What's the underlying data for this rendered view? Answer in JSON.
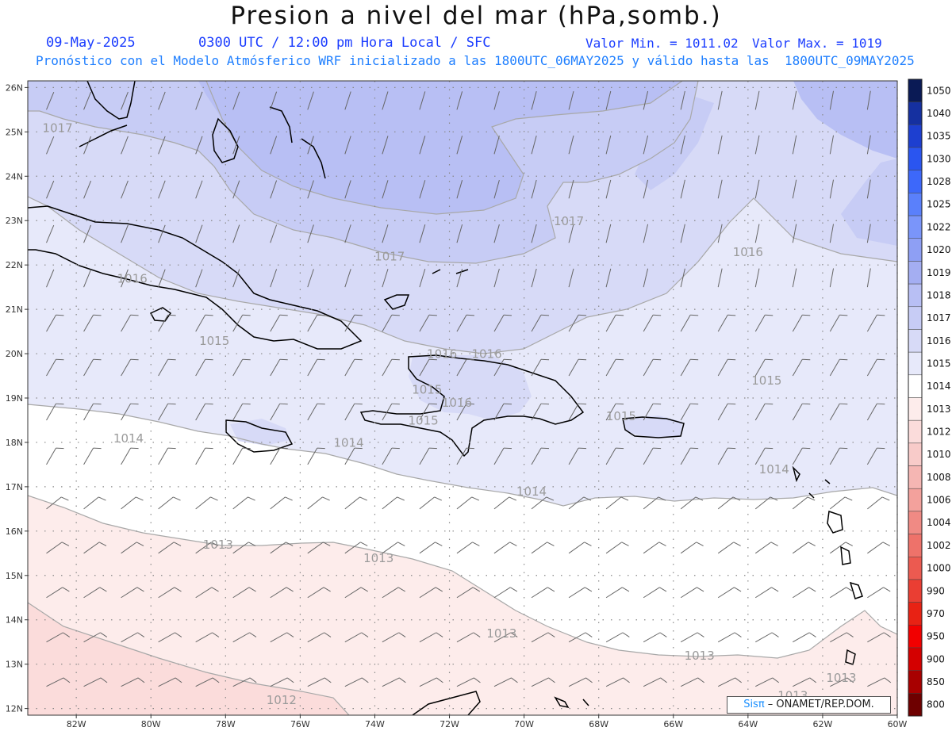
{
  "header": {
    "title": "Presion a nivel del mar (hPa,somb.)",
    "date": "09-May-2025",
    "time_info": "0300 UTC / 12:00 pm Hora Local / SFC",
    "valor_min": "Valor Min. = 1011.02",
    "valor_max": "Valor Max. = 1019",
    "model_info": "Pronóstico con el Modelo Atmósferico WRF inicializado a las 1800UTC_06MAY2025 y válido hasta las  1800UTC_09MAY2025"
  },
  "axes": {
    "lat_labels": [
      "26N",
      "25N",
      "24N",
      "23N",
      "22N",
      "21N",
      "20N",
      "19N",
      "18N",
      "17N",
      "16N",
      "15N",
      "14N",
      "13N",
      "12N"
    ],
    "lon_labels": [
      "82W",
      "80W",
      "78W",
      "76W",
      "74W",
      "72W",
      "70W",
      "68W",
      "66W",
      "64W",
      "62W",
      "60W"
    ]
  },
  "colorbar": {
    "levels": [
      "1050",
      "1040",
      "1035",
      "1030",
      "1028",
      "1025",
      "1022",
      "1020",
      "1019",
      "1018",
      "1017",
      "1016",
      "1015",
      "1014",
      "1013",
      "1012",
      "1010",
      "1008",
      "1006",
      "1004",
      "1002",
      "1000",
      "990",
      "970",
      "950",
      "900",
      "850",
      "800"
    ],
    "colors": [
      "#0a1a55",
      "#1530a0",
      "#1d3fd0",
      "#2a55f0",
      "#3d68fa",
      "#5a80fb",
      "#7a95fa",
      "#8e9ff4",
      "#a4aef2",
      "#b8bff4",
      "#c7ccf5",
      "#d7daf7",
      "#e7e9fa",
      "#ffffff",
      "#fdeceb",
      "#fbdcdb",
      "#f8cbc9",
      "#f5b6b3",
      "#f3a19c",
      "#f08a84",
      "#ee726a",
      "#ec5a50",
      "#ea3e33",
      "#e82214",
      "#f20000",
      "#d40000",
      "#a80000",
      "#6e0000"
    ]
  },
  "isobar_labels": [
    {
      "text": "1017",
      "lon": -82.5,
      "lat": 25.0
    },
    {
      "text": "1017",
      "lon": -68.8,
      "lat": 22.9
    },
    {
      "text": "1017",
      "lon": -73.6,
      "lat": 22.1
    },
    {
      "text": "1016",
      "lon": -80.5,
      "lat": 21.6
    },
    {
      "text": "1016",
      "lon": -64.0,
      "lat": 22.2
    },
    {
      "text": "1015",
      "lon": -78.3,
      "lat": 20.2
    },
    {
      "text": "1016",
      "lon": -72.2,
      "lat": 19.9
    },
    {
      "text": "1016",
      "lon": -71.0,
      "lat": 19.9
    },
    {
      "text": "1015",
      "lon": -72.6,
      "lat": 19.1
    },
    {
      "text": "1016",
      "lon": -71.8,
      "lat": 18.8
    },
    {
      "text": "1015",
      "lon": -72.7,
      "lat": 18.4
    },
    {
      "text": "1015",
      "lon": -63.5,
      "lat": 19.3
    },
    {
      "text": "1015",
      "lon": -67.4,
      "lat": 18.5
    },
    {
      "text": "1014",
      "lon": -80.6,
      "lat": 18.0
    },
    {
      "text": "1014",
      "lon": -74.7,
      "lat": 17.9
    },
    {
      "text": "1014",
      "lon": -63.3,
      "lat": 17.3
    },
    {
      "text": "1014",
      "lon": -69.8,
      "lat": 16.8
    },
    {
      "text": "1013",
      "lon": -78.2,
      "lat": 15.6
    },
    {
      "text": "1013",
      "lon": -73.9,
      "lat": 15.3
    },
    {
      "text": "1013",
      "lon": -70.6,
      "lat": 13.6
    },
    {
      "text": "1013",
      "lon": -65.3,
      "lat": 13.1
    },
    {
      "text": "1013",
      "lon": -61.5,
      "lat": 12.6
    },
    {
      "text": "1013",
      "lon": -62.8,
      "lat": 12.2
    },
    {
      "text": "1012",
      "lon": -76.5,
      "lat": 12.1
    }
  ],
  "credit": {
    "sis": "Sisπ",
    "rest": " – ONAMET/REP.DOM."
  }
}
